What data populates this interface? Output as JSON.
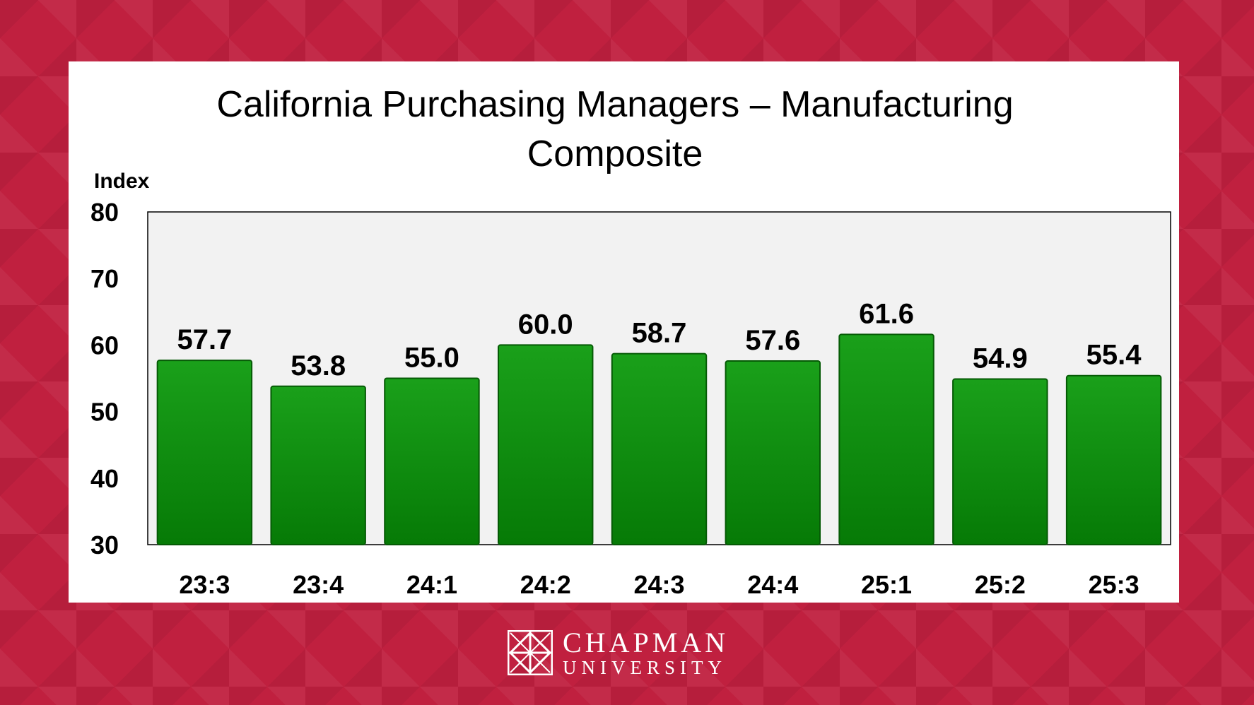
{
  "chart_data": {
    "type": "bar",
    "title_lines": [
      "California Purchasing Managers – Manufacturing",
      "Composite"
    ],
    "ylabel": "Index",
    "xlabel": "",
    "ylim": [
      30,
      80
    ],
    "yticks": [
      "80",
      "70",
      "60",
      "50",
      "40",
      "30"
    ],
    "ytick_values": [
      80,
      70,
      60,
      50,
      40,
      30
    ],
    "categories": [
      "23:3",
      "23:4",
      "24:1",
      "24:2",
      "24:3",
      "24:4",
      "25:1",
      "25:2",
      "25:3"
    ],
    "values": [
      57.7,
      53.8,
      55.0,
      60.0,
      58.7,
      57.6,
      61.6,
      54.9,
      55.4
    ],
    "value_labels": [
      "57.7",
      "53.8",
      "55.0",
      "60.0",
      "58.7",
      "57.6",
      "61.6",
      "54.9",
      "55.4"
    ],
    "bar_color": "#0a8a0a",
    "plot_background": "#f2f2f2",
    "grid": false,
    "legend": "none"
  },
  "branding": {
    "line1": "CHAPMAN",
    "line2": "UNIVERSITY",
    "background_color": "#c0203f",
    "icon": "chapman-window-logo-icon"
  }
}
